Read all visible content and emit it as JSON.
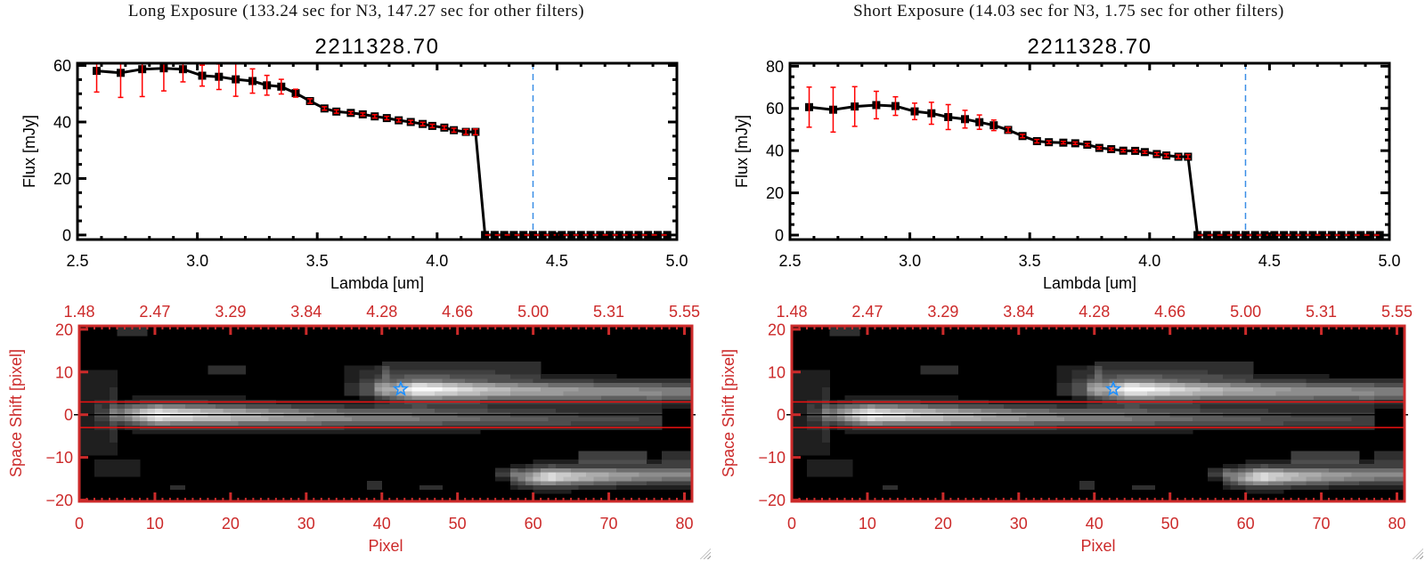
{
  "panels": [
    {
      "title": "Long Exposure (133.24 sec for N3, 147.27 sec for other filters)"
    },
    {
      "title": "Short Exposure (14.03 sec for N3, 1.75 sec for other filters)"
    }
  ],
  "colors": {
    "spectrum_axis": "#000000",
    "error_bar": "#ff0000",
    "reference_line": "#3a8ee6",
    "image_axis": "#cc2a2a",
    "aperture_line": "#ee1111",
    "marker": "#1e90ff"
  },
  "chart_data": [
    {
      "type": "line",
      "title": "2211328.70",
      "xlabel": "Lambda [um]",
      "ylabel": "Flux [mJy]",
      "xlim": [
        2.5,
        5.0
      ],
      "ylim": [
        -1.6,
        60.8
      ],
      "x_ticks": [
        2.5,
        3.0,
        3.5,
        4.0,
        4.5,
        5.0
      ],
      "x_tick_labels": [
        "2.5",
        "3.0",
        "3.5",
        "4.0",
        "4.5",
        "5.0"
      ],
      "x_minor_step": 0.1,
      "y_ticks": [
        0,
        20,
        40,
        60
      ],
      "y_tick_labels": [
        "0",
        "20",
        "40",
        "60"
      ],
      "y_minor_step": 5,
      "grid": false,
      "legend": "none",
      "error_color": "#ff0000",
      "series": [
        {
          "name": "Flux",
          "marker": "square",
          "color": "#000000",
          "x": [
            2.58,
            2.68,
            2.77,
            2.86,
            2.94,
            3.02,
            3.09,
            3.16,
            3.23,
            3.29,
            3.35,
            3.41,
            3.47,
            3.53,
            3.58,
            3.64,
            3.69,
            3.74,
            3.79,
            3.84,
            3.89,
            3.94,
            3.98,
            4.03,
            4.07,
            4.12,
            4.16,
            4.2,
            4.24,
            4.28,
            4.32,
            4.36,
            4.4,
            4.44,
            4.48,
            4.52,
            4.56,
            4.6,
            4.64,
            4.68,
            4.72,
            4.76,
            4.8,
            4.84,
            4.88,
            4.92,
            4.96
          ],
          "y": [
            58.1,
            57.4,
            58.7,
            59.0,
            58.7,
            56.4,
            56.0,
            55.1,
            54.5,
            53.0,
            52.5,
            50.2,
            47.4,
            44.8,
            43.7,
            43.2,
            42.7,
            42.0,
            41.4,
            40.6,
            40.0,
            39.3,
            38.6,
            38.0,
            37.1,
            36.5,
            36.5,
            0,
            0,
            0,
            0,
            0,
            0,
            0,
            0,
            0,
            0,
            0,
            0,
            0,
            0,
            0,
            0,
            0,
            0,
            0,
            0
          ],
          "yerr": [
            7.5,
            8.7,
            9.7,
            8.0,
            4.5,
            3.7,
            4.5,
            6.0,
            4.3,
            3.5,
            2.6,
            1.4,
            0.8,
            0.6,
            0.6,
            0.5,
            0.5,
            0.6,
            0.6,
            0.6,
            0.6,
            0.6,
            0.6,
            0.6,
            0.7,
            0.9,
            1.0,
            0,
            0,
            0,
            0,
            0,
            0,
            0,
            0,
            0,
            0,
            0,
            0,
            0,
            0,
            0,
            0,
            0,
            0,
            0,
            0
          ]
        }
      ],
      "vline": {
        "x": 4.4,
        "color": "#3a8ee6",
        "style": "dashed"
      },
      "zero_line": {
        "x_range": [
          4.2,
          5.0
        ],
        "y": 0,
        "color": "#ff0000",
        "style": "dashed"
      }
    },
    {
      "type": "heatmap",
      "xlabel": "Pixel",
      "ylabel": "Space Shift [pixel]",
      "xlim": [
        0,
        81
      ],
      "ylim": [
        -20.3,
        20.8
      ],
      "x_ticks": [
        0,
        10,
        20,
        30,
        40,
        50,
        60,
        70,
        80
      ],
      "x_tick_labels": [
        "0",
        "10",
        "20",
        "30",
        "40",
        "50",
        "60",
        "70",
        "80"
      ],
      "x_minor_step": 1,
      "top_tick_labels": [
        "1.48",
        "2.47",
        "3.29",
        "3.84",
        "4.28",
        "4.66",
        "5.00",
        "5.31",
        "5.55"
      ],
      "y_ticks": [
        -20,
        -10,
        0,
        10,
        20
      ],
      "y_tick_labels": [
        "−20",
        "−10",
        "0",
        "10",
        "20"
      ],
      "colormap": "grayscale",
      "grid_size": [
        81,
        41
      ],
      "grid_y_min": -20,
      "intensity_threshold": 0.1,
      "sources": [
        {
          "name": "main-trace",
          "x_start": 4,
          "x_peak": 10,
          "x_end": 77,
          "y_center": 0,
          "y_slope": -0.02,
          "sigma_y": 1.6,
          "peak": 0.85,
          "tail": 0.1,
          "decay": 35,
          "halo": 0.2,
          "halo_sigma": 4.5
        },
        {
          "name": "second-trace",
          "x_start": 39,
          "x_peak": 45,
          "x_end": 81,
          "y_center": 6,
          "y_slope": -0.02,
          "sigma_y": 1.5,
          "peak": 0.85,
          "tail": 0.4,
          "decay": 12,
          "halo": 0.25,
          "halo_sigma": 3.5
        },
        {
          "name": "third-trace",
          "x_start": 57,
          "x_peak": 62,
          "x_end": 81,
          "y_center": -14.5,
          "y_slope": 0.03,
          "sigma_y": 1.4,
          "peak": 0.75,
          "tail": 0.38,
          "decay": 9,
          "halo": 0.25,
          "halo_sigma": 3
        }
      ],
      "patches": [
        {
          "x": 0,
          "y": -9,
          "w": 5,
          "h": 20,
          "level": 0.13
        },
        {
          "x": 5,
          "y": 19,
          "w": 4,
          "h": 2,
          "level": 0.16
        },
        {
          "x": 17,
          "y": 10,
          "w": 5,
          "h": 2,
          "level": 0.16
        },
        {
          "x": 2,
          "y": -14,
          "w": 6,
          "h": 4,
          "level": 0.14
        },
        {
          "x": 12,
          "y": -17,
          "w": 2,
          "h": 1,
          "level": 0.16
        },
        {
          "x": 35,
          "y": 5,
          "w": 6,
          "h": 7,
          "level": 0.14
        },
        {
          "x": 38,
          "y": -17,
          "w": 2,
          "h": 2,
          "level": 0.16
        },
        {
          "x": 40,
          "y": 9,
          "w": 21,
          "h": 4,
          "level": 0.13
        },
        {
          "x": 45,
          "y": -17,
          "w": 3,
          "h": 1,
          "level": 0.16
        },
        {
          "x": 66,
          "y": -11,
          "w": 9,
          "h": 3,
          "level": 0.2
        },
        {
          "x": 77,
          "y": -11,
          "w": 4,
          "h": 3,
          "level": 0.16
        },
        {
          "x": 55,
          "y": -14,
          "w": 3,
          "h": 2,
          "level": 0.13
        }
      ],
      "center_line": {
        "y": 0,
        "color": "#000000"
      },
      "aperture_lines": {
        "y": [
          -3,
          3
        ],
        "color": "#ee1111"
      },
      "marker": {
        "shape": "star",
        "x": 42.5,
        "y": 6,
        "color": "#1e90ff"
      },
      "axis_color": "#cc2a2a"
    },
    {
      "type": "line",
      "title": "2211328.70",
      "xlabel": "Lambda [um]",
      "ylabel": "Flux [mJy]",
      "xlim": [
        2.5,
        5.0
      ],
      "ylim": [
        -2.1,
        81.4
      ],
      "x_ticks": [
        2.5,
        3.0,
        3.5,
        4.0,
        4.5,
        5.0
      ],
      "x_tick_labels": [
        "2.5",
        "3.0",
        "3.5",
        "4.0",
        "4.5",
        "5.0"
      ],
      "x_minor_step": 0.1,
      "y_ticks": [
        0,
        20,
        40,
        60,
        80
      ],
      "y_tick_labels": [
        "0",
        "20",
        "40",
        "60",
        "80"
      ],
      "y_minor_step": 5,
      "grid": false,
      "legend": "none",
      "error_color": "#ff0000",
      "series": [
        {
          "name": "Flux",
          "marker": "square",
          "color": "#000000",
          "x": [
            2.58,
            2.68,
            2.77,
            2.86,
            2.94,
            3.02,
            3.09,
            3.16,
            3.23,
            3.29,
            3.35,
            3.41,
            3.47,
            3.53,
            3.58,
            3.64,
            3.69,
            3.74,
            3.79,
            3.84,
            3.89,
            3.94,
            3.98,
            4.03,
            4.07,
            4.12,
            4.16,
            4.2,
            4.24,
            4.28,
            4.32,
            4.36,
            4.4,
            4.44,
            4.48,
            4.52,
            4.56,
            4.6,
            4.64,
            4.68,
            4.72,
            4.76,
            4.8,
            4.84,
            4.88,
            4.92,
            4.96
          ],
          "y": [
            60.6,
            59.4,
            60.9,
            61.6,
            61.1,
            58.6,
            57.7,
            55.9,
            54.9,
            53.5,
            52.0,
            49.8,
            46.9,
            44.5,
            44.0,
            43.8,
            43.5,
            42.8,
            41.3,
            40.7,
            40.0,
            39.9,
            39.3,
            38.4,
            37.7,
            37.1,
            37.1,
            0,
            0,
            0,
            0,
            0,
            0,
            0,
            0,
            0,
            0,
            0,
            0,
            0,
            0,
            0,
            0,
            0,
            0,
            0,
            0
          ],
          "yerr": [
            9.5,
            10.6,
            9.4,
            6.5,
            4.4,
            3.9,
            5.2,
            5.9,
            4.2,
            3.4,
            2.5,
            1.2,
            0.8,
            0.8,
            0.7,
            0.6,
            0.6,
            0.6,
            0.6,
            0.6,
            0.6,
            0.6,
            0.6,
            0.7,
            0.8,
            0.9,
            1.0,
            0,
            0,
            0,
            0,
            0,
            0,
            0,
            0,
            0,
            0,
            0,
            0,
            0,
            0,
            0,
            0,
            0,
            0,
            0,
            0
          ]
        }
      ],
      "vline": {
        "x": 4.4,
        "color": "#3a8ee6",
        "style": "dashed"
      },
      "zero_line": {
        "x_range": [
          4.2,
          5.0
        ],
        "y": 0,
        "color": "#ff0000",
        "style": "dashed"
      }
    },
    {
      "type": "heatmap",
      "xlabel": "Pixel",
      "ylabel": "Space Shift [pixel]",
      "xlim": [
        0,
        81
      ],
      "ylim": [
        -20.3,
        20.8
      ],
      "x_ticks": [
        0,
        10,
        20,
        30,
        40,
        50,
        60,
        70,
        80
      ],
      "x_tick_labels": [
        "0",
        "10",
        "20",
        "30",
        "40",
        "50",
        "60",
        "70",
        "80"
      ],
      "x_minor_step": 1,
      "top_tick_labels": [
        "1.48",
        "2.47",
        "3.29",
        "3.84",
        "4.28",
        "4.66",
        "5.00",
        "5.31",
        "5.55"
      ],
      "y_ticks": [
        -20,
        -10,
        0,
        10,
        20
      ],
      "y_tick_labels": [
        "−20",
        "−10",
        "0",
        "10",
        "20"
      ],
      "colormap": "grayscale",
      "grid_size": [
        81,
        41
      ],
      "grid_y_min": -20,
      "intensity_threshold": 0.1,
      "sources": [
        {
          "name": "main-trace",
          "x_start": 4,
          "x_peak": 10,
          "x_end": 77,
          "y_center": 0,
          "y_slope": -0.02,
          "sigma_y": 1.6,
          "peak": 0.85,
          "tail": 0.1,
          "decay": 35,
          "halo": 0.2,
          "halo_sigma": 4.5
        },
        {
          "name": "second-trace",
          "x_start": 39,
          "x_peak": 45,
          "x_end": 81,
          "y_center": 6,
          "y_slope": -0.02,
          "sigma_y": 1.5,
          "peak": 0.85,
          "tail": 0.4,
          "decay": 12,
          "halo": 0.25,
          "halo_sigma": 3.5
        },
        {
          "name": "third-trace",
          "x_start": 57,
          "x_peak": 62,
          "x_end": 81,
          "y_center": -14.5,
          "y_slope": 0.03,
          "sigma_y": 1.4,
          "peak": 0.75,
          "tail": 0.38,
          "decay": 9,
          "halo": 0.25,
          "halo_sigma": 3
        }
      ],
      "patches": [
        {
          "x": 0,
          "y": -9,
          "w": 5,
          "h": 20,
          "level": 0.13
        },
        {
          "x": 5,
          "y": 19,
          "w": 4,
          "h": 2,
          "level": 0.16
        },
        {
          "x": 17,
          "y": 10,
          "w": 5,
          "h": 2,
          "level": 0.16
        },
        {
          "x": 2,
          "y": -14,
          "w": 6,
          "h": 4,
          "level": 0.14
        },
        {
          "x": 12,
          "y": -17,
          "w": 2,
          "h": 1,
          "level": 0.16
        },
        {
          "x": 35,
          "y": 5,
          "w": 6,
          "h": 7,
          "level": 0.14
        },
        {
          "x": 38,
          "y": -17,
          "w": 2,
          "h": 2,
          "level": 0.16
        },
        {
          "x": 40,
          "y": 9,
          "w": 21,
          "h": 4,
          "level": 0.13
        },
        {
          "x": 45,
          "y": -17,
          "w": 3,
          "h": 1,
          "level": 0.16
        },
        {
          "x": 66,
          "y": -11,
          "w": 9,
          "h": 3,
          "level": 0.2
        },
        {
          "x": 77,
          "y": -11,
          "w": 4,
          "h": 3,
          "level": 0.16
        },
        {
          "x": 55,
          "y": -14,
          "w": 3,
          "h": 2,
          "level": 0.13
        }
      ],
      "center_line": {
        "y": 0,
        "color": "#000000"
      },
      "aperture_lines": {
        "y": [
          -3,
          3
        ],
        "color": "#ee1111"
      },
      "marker": {
        "shape": "star",
        "x": 42.5,
        "y": 6,
        "color": "#1e90ff"
      },
      "axis_color": "#cc2a2a"
    }
  ]
}
